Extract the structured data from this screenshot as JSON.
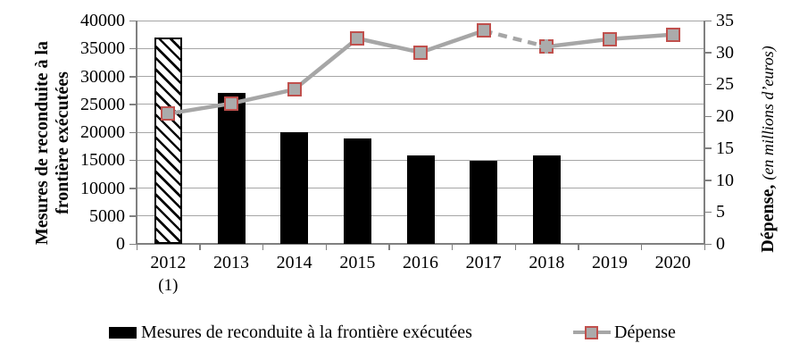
{
  "chart_data": {
    "type": "combo-bar-line",
    "title": "",
    "categories": [
      "2012",
      "2013",
      "2014",
      "2015",
      "2016",
      "2017",
      "2018",
      "2019",
      "2020"
    ],
    "category_footnotes": [
      "(1)",
      "",
      "",
      "",
      "",
      "",
      "",
      "",
      ""
    ],
    "series": [
      {
        "name": "Mesures de reconduite à la frontière exécutées",
        "type": "bar",
        "axis": "left",
        "color": "#000000",
        "hatched_indices": [
          0
        ],
        "values": [
          37000,
          27000,
          20000,
          18900,
          15800,
          14900,
          15800,
          null,
          null
        ]
      },
      {
        "name": "Dépense",
        "type": "line",
        "axis": "right",
        "color": "#a6a6a6",
        "marker_fill": "#ababab",
        "marker_border": "#c0504d",
        "dashed_segments": [
          [
            5,
            6
          ]
        ],
        "dashed_marker_indices": [
          6
        ],
        "values": [
          20.4,
          22.0,
          24.2,
          32.2,
          30.0,
          33.4,
          30.9,
          32.1,
          32.8
        ]
      }
    ],
    "left_axis": {
      "title_lines": [
        "Mesures de reconduite à la",
        "frontière exécutées"
      ],
      "min": 0,
      "max": 40000,
      "step": 5000,
      "tick_labels": [
        "0",
        "5000",
        "10000",
        "15000",
        "20000",
        "25000",
        "30000",
        "35000",
        "40000"
      ]
    },
    "right_axis": {
      "title_bold": "Dépense,",
      "title_italic": "(en millions d’euros)",
      "min": 0,
      "max": 35,
      "step": 5,
      "tick_labels": [
        "0",
        "5",
        "10",
        "15",
        "20",
        "25",
        "30",
        "35"
      ]
    },
    "grid": "horizontal",
    "legend_position": "bottom"
  },
  "colors": {
    "gridline": "#a6a6a6",
    "axis": "#808080",
    "line_series": "#a6a6a6",
    "marker_fill": "#ababab",
    "marker_border": "#c0504d",
    "bar": "#000000"
  }
}
